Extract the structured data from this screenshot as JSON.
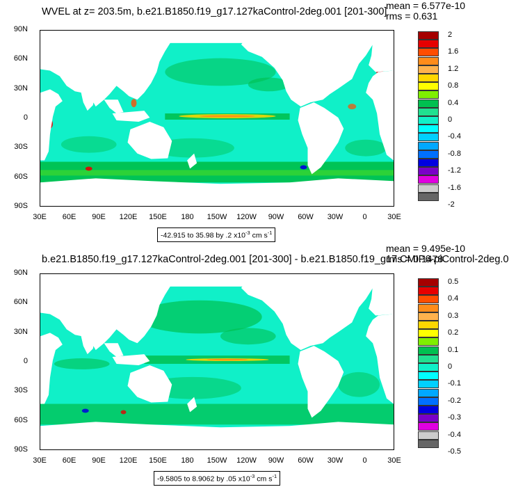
{
  "chart_data": [
    {
      "type": "heatmap",
      "title": "WVEL at z= 203.5m, b.e21.B1850.f19_g17.127kaControl-2deg.001 [201-300]",
      "mean_label": "mean = 6.577e-10",
      "rms_label": "rms = 0.631",
      "range_note": "-42.915 to 35.98 by .2 x10",
      "range_exp": "-3",
      "range_unit": " cm s",
      "range_unit_exp": "-1",
      "x_ticks": [
        "30E",
        "60E",
        "90E",
        "120E",
        "150E",
        "180",
        "150W",
        "120W",
        "90W",
        "60W",
        "30W",
        "0",
        "30E"
      ],
      "y_ticks": [
        "90N",
        "60N",
        "30N",
        "0",
        "30S",
        "60S",
        "90S"
      ],
      "xlim": [
        30,
        390
      ],
      "ylim": [
        -90,
        90
      ],
      "levels": [
        "2",
        "1.6",
        "1.2",
        "0.8",
        "0.4",
        "0",
        "-0.4",
        "-0.8",
        "-1.2",
        "-1.6",
        "-2"
      ],
      "colors": [
        "#a50000",
        "#e60000",
        "#ff4d00",
        "#ff8c1a",
        "#ffb24d",
        "#ffd700",
        "#ffff00",
        "#7fef00",
        "#00c050",
        "#20e090",
        "#10f0c8",
        "#00ffff",
        "#00d0ff",
        "#00a8ff",
        "#0070ff",
        "#0000e0",
        "#7a00c8",
        "#e000e0",
        "#cccccc",
        "#666666"
      ]
    },
    {
      "type": "heatmap",
      "title": "b.e21.B1850.f19_g17.127kaControl-2deg.001 [201-300] - b.e21.B1850.f19_g17.CMIP6-piControl-2deg.0",
      "mean_label": "mean = 9.495e-10",
      "rms_label": "rms = 0.1478",
      "range_note": "-9.5805 to 8.9062 by .05 x10",
      "range_exp": "-3",
      "range_unit": " cm s",
      "range_unit_exp": "-1",
      "x_ticks": [
        "30E",
        "60E",
        "90E",
        "120E",
        "150E",
        "180",
        "150W",
        "120W",
        "90W",
        "60W",
        "30W",
        "0",
        "30E"
      ],
      "y_ticks": [
        "90N",
        "60N",
        "30N",
        "0",
        "30S",
        "60S",
        "90S"
      ],
      "xlim": [
        30,
        390
      ],
      "ylim": [
        -90,
        90
      ],
      "levels": [
        "0.5",
        "0.4",
        "0.3",
        "0.2",
        "0.1",
        "0",
        "-0.1",
        "-0.2",
        "-0.3",
        "-0.4",
        "-0.5"
      ],
      "colors": [
        "#a50000",
        "#e60000",
        "#ff4d00",
        "#ff8c1a",
        "#ffb24d",
        "#ffd700",
        "#ffff00",
        "#7fef00",
        "#00c050",
        "#20e090",
        "#10f0c8",
        "#00ffff",
        "#00d0ff",
        "#00a8ff",
        "#0070ff",
        "#0000e0",
        "#7a00c8",
        "#e000e0",
        "#cccccc",
        "#666666"
      ]
    }
  ]
}
